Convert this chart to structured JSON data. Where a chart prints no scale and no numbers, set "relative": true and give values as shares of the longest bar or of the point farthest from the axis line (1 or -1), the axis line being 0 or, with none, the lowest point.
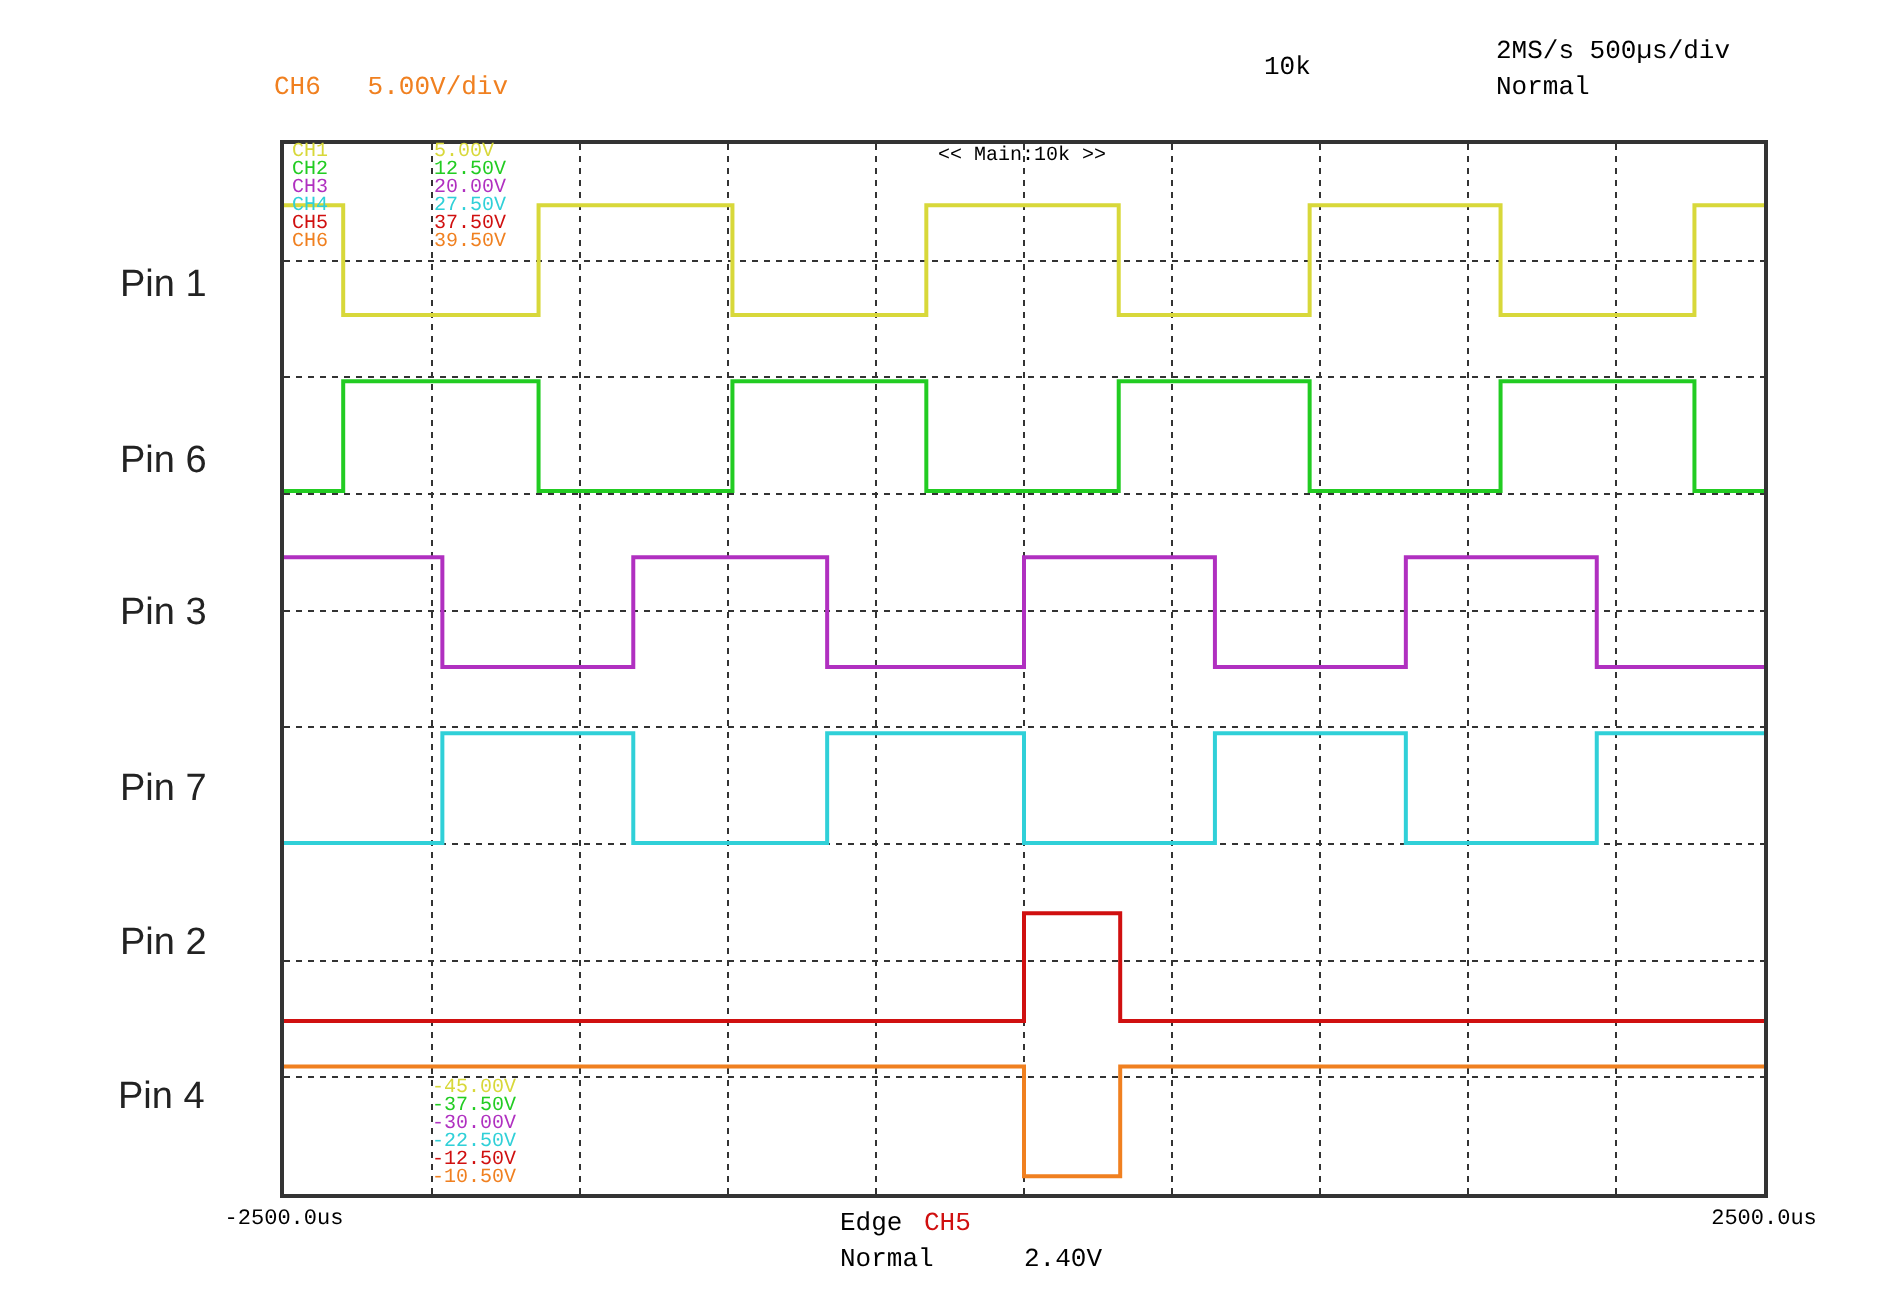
{
  "chart_data": {
    "type": "step",
    "relative": true,
    "grid": true,
    "legend": false,
    "marker": "none",
    "line_style": "solid",
    "xlim": [
      -2500,
      2500
    ],
    "xticks": [
      {
        "value": -2500,
        "label": "-2500.0us"
      },
      {
        "value": -2000,
        "label": null
      },
      {
        "value": -1500,
        "label": null
      },
      {
        "value": -1000,
        "label": null
      },
      {
        "value": -500,
        "label": null
      },
      {
        "value": 0,
        "label": null
      },
      {
        "value": 500,
        "label": null
      },
      {
        "value": 1000,
        "label": null
      },
      {
        "value": 1500,
        "label": null
      },
      {
        "value": 2000,
        "label": null
      },
      {
        "value": 2500,
        "label": "2500.0us"
      }
    ],
    "series": [
      {
        "name": "Pin 1",
        "color": "#d8d83a",
        "x": [
          -2500,
          -2300,
          -1640,
          -985,
          -330,
          320,
          965,
          1610,
          2265,
          2500
        ],
        "values": [
          1,
          0.889,
          1,
          0.889,
          1,
          0.889,
          1,
          0.889,
          1,
          1
        ]
      },
      {
        "name": "Pin 6",
        "color": "#22cc22",
        "x": [
          -2500,
          -2300,
          -1640,
          -985,
          -330,
          320,
          965,
          1610,
          2265,
          2500
        ],
        "values": [
          0.711,
          0.822,
          0.711,
          0.822,
          0.711,
          0.822,
          0.711,
          0.822,
          0.711,
          0.711
        ]
      },
      {
        "name": "Pin 3",
        "color": "#b030c0",
        "x": [
          -2500,
          -1965,
          -1320,
          -665,
          0,
          645,
          1290,
          1935,
          2500
        ],
        "values": [
          0.644,
          0.533,
          0.644,
          0.533,
          0.644,
          0.533,
          0.644,
          0.533,
          0.533
        ]
      },
      {
        "name": "Pin 7",
        "color": "#30d0d8",
        "x": [
          -2500,
          -1965,
          -1320,
          -665,
          0,
          645,
          1290,
          1935,
          2500
        ],
        "values": [
          0.355,
          0.466,
          0.355,
          0.466,
          0.355,
          0.466,
          0.355,
          0.466,
          0.466
        ]
      },
      {
        "name": "Pin 2",
        "color": "#d01010",
        "x": [
          -2500,
          0,
          325,
          2500
        ],
        "values": [
          0.175,
          0.284,
          0.175,
          0.175
        ]
      },
      {
        "name": "Pin 4",
        "color": "#f08020",
        "x": [
          -2500,
          0,
          325,
          2500
        ],
        "values": [
          0.129,
          0.018,
          0.129,
          0.129
        ]
      }
    ],
    "annotations": [
      "CH6   5.00V/div",
      "10k",
      "2MS/s 500µs/div",
      "Normal",
      "<< Main:10k >>",
      "CH1",
      "5.00V",
      "CH2",
      "12.50V",
      "CH3",
      "20.00V",
      "CH4",
      "27.50V",
      "CH5",
      "37.50V",
      "CH6",
      "39.50V",
      "-45.00V",
      "-37.50V",
      "-30.00V",
      "-22.50V",
      "-12.50V",
      "-10.50V",
      "Edge",
      "CH5",
      "Normal",
      "2.40V"
    ]
  }
}
